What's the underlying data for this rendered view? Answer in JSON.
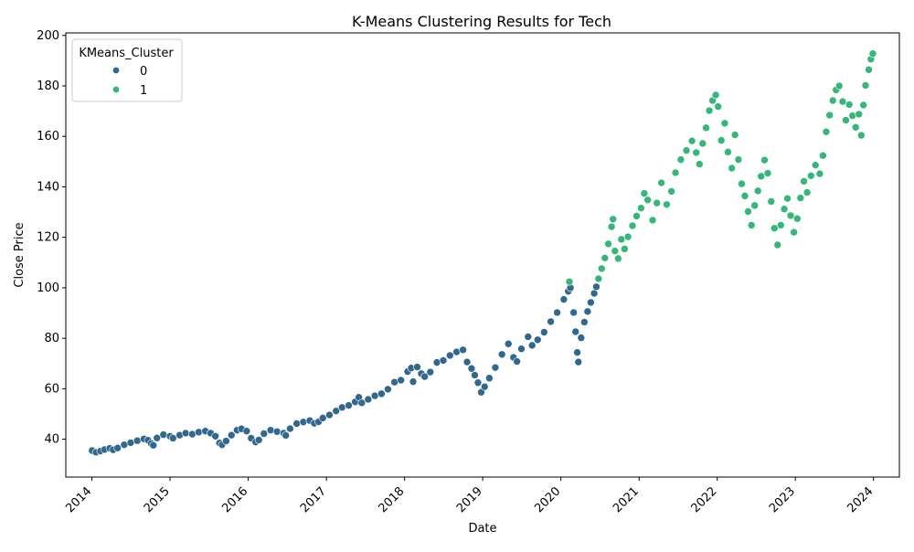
{
  "chart_data": {
    "type": "scatter",
    "title": "K-Means Clustering Results for Tech",
    "xlabel": "Date",
    "ylabel": "Close Price",
    "xlim": [
      "2013-09-01",
      "2024-05-01"
    ],
    "ylim": [
      25,
      201
    ],
    "x_ticks": [
      "2014",
      "2015",
      "2016",
      "2017",
      "2018",
      "2019",
      "2020",
      "2021",
      "2022",
      "2023",
      "2024"
    ],
    "y_ticks": [
      40,
      60,
      80,
      100,
      120,
      140,
      160,
      180,
      200
    ],
    "grid": false,
    "legend": {
      "title": "KMeans_Cluster",
      "placement": "upper-left",
      "entries": [
        {
          "label": "0",
          "color": "#31688e"
        },
        {
          "label": "1",
          "color": "#35b779"
        }
      ]
    },
    "series": [
      {
        "name": "0",
        "color": "#31688e",
        "points": [
          [
            "2014-01-02",
            35.5
          ],
          [
            "2014-01-20",
            34.8
          ],
          [
            "2014-02-10",
            35.3
          ],
          [
            "2014-03-01",
            35.9
          ],
          [
            "2014-03-25",
            36.4
          ],
          [
            "2014-04-10",
            35.8
          ],
          [
            "2014-05-01",
            36.5
          ],
          [
            "2014-06-01",
            37.8
          ],
          [
            "2014-07-01",
            38.6
          ],
          [
            "2014-08-01",
            39.4
          ],
          [
            "2014-09-01",
            40.1
          ],
          [
            "2014-09-20",
            39.6
          ],
          [
            "2014-10-05",
            38.3
          ],
          [
            "2014-10-15",
            37.6
          ],
          [
            "2014-11-01",
            40.5
          ],
          [
            "2014-12-01",
            41.8
          ],
          [
            "2015-01-01",
            41.2
          ],
          [
            "2015-01-15",
            40.4
          ],
          [
            "2015-02-15",
            41.6
          ],
          [
            "2015-03-15",
            42.4
          ],
          [
            "2015-04-15",
            42.0
          ],
          [
            "2015-05-15",
            42.8
          ],
          [
            "2015-06-15",
            43.2
          ],
          [
            "2015-07-10",
            42.4
          ],
          [
            "2015-08-01",
            41.2
          ],
          [
            "2015-08-20",
            38.5
          ],
          [
            "2015-09-01",
            37.8
          ],
          [
            "2015-09-20",
            39.3
          ],
          [
            "2015-10-15",
            41.6
          ],
          [
            "2015-11-10",
            43.6
          ],
          [
            "2015-12-01",
            44.1
          ],
          [
            "2015-12-25",
            43.2
          ],
          [
            "2016-01-15",
            40.4
          ],
          [
            "2016-02-05",
            38.9
          ],
          [
            "2016-02-20",
            39.7
          ],
          [
            "2016-03-15",
            42.2
          ],
          [
            "2016-04-15",
            43.6
          ],
          [
            "2016-05-15",
            43.0
          ],
          [
            "2016-06-15",
            42.4
          ],
          [
            "2016-06-25",
            41.5
          ],
          [
            "2016-07-15",
            44.2
          ],
          [
            "2016-08-15",
            46.2
          ],
          [
            "2016-09-15",
            46.8
          ],
          [
            "2016-10-15",
            47.4
          ],
          [
            "2016-11-05",
            46.3
          ],
          [
            "2016-11-25",
            46.9
          ],
          [
            "2016-12-15",
            48.4
          ],
          [
            "2017-01-15",
            49.6
          ],
          [
            "2017-02-15",
            51.2
          ],
          [
            "2017-03-15",
            52.6
          ],
          [
            "2017-04-15",
            53.4
          ],
          [
            "2017-05-15",
            54.8
          ],
          [
            "2017-06-01",
            56.6
          ],
          [
            "2017-06-15",
            54.4
          ],
          [
            "2017-07-15",
            55.8
          ],
          [
            "2017-08-15",
            57.2
          ],
          [
            "2017-09-15",
            58.0
          ],
          [
            "2017-10-15",
            59.8
          ],
          [
            "2017-11-15",
            62.6
          ],
          [
            "2017-12-15",
            63.4
          ],
          [
            "2018-01-15",
            66.8
          ],
          [
            "2018-02-01",
            68.2
          ],
          [
            "2018-02-10",
            62.8
          ],
          [
            "2018-03-01",
            68.6
          ],
          [
            "2018-03-20",
            66.0
          ],
          [
            "2018-04-05",
            64.8
          ],
          [
            "2018-05-01",
            66.6
          ],
          [
            "2018-06-01",
            70.4
          ],
          [
            "2018-07-01",
            71.2
          ],
          [
            "2018-08-01",
            73.2
          ],
          [
            "2018-09-01",
            74.6
          ],
          [
            "2018-10-01",
            75.4
          ],
          [
            "2018-10-20",
            70.6
          ],
          [
            "2018-11-10",
            68.0
          ],
          [
            "2018-11-25",
            65.4
          ],
          [
            "2018-12-10",
            62.4
          ],
          [
            "2018-12-25",
            58.6
          ],
          [
            "2019-01-10",
            60.8
          ],
          [
            "2019-02-01",
            64.2
          ],
          [
            "2019-03-01",
            68.4
          ],
          [
            "2019-04-01",
            73.6
          ],
          [
            "2019-05-01",
            77.8
          ],
          [
            "2019-05-25",
            72.4
          ],
          [
            "2019-06-10",
            70.8
          ],
          [
            "2019-07-01",
            75.8
          ],
          [
            "2019-08-01",
            80.6
          ],
          [
            "2019-08-20",
            77.2
          ],
          [
            "2019-09-15",
            79.4
          ],
          [
            "2019-10-15",
            82.4
          ],
          [
            "2019-11-15",
            86.6
          ],
          [
            "2019-12-15",
            90.2
          ],
          [
            "2020-01-15",
            95.4
          ],
          [
            "2020-02-05",
            98.6
          ],
          [
            "2020-02-15",
            100.0
          ],
          [
            "2020-03-01",
            90.2
          ],
          [
            "2020-03-10",
            82.6
          ],
          [
            "2020-03-18",
            74.4
          ],
          [
            "2020-03-23",
            70.6
          ],
          [
            "2020-04-05",
            80.2
          ],
          [
            "2020-04-20",
            86.4
          ],
          [
            "2020-05-05",
            90.6
          ],
          [
            "2020-05-20",
            94.2
          ],
          [
            "2020-06-05",
            97.8
          ],
          [
            "2020-06-15",
            100.4
          ]
        ]
      },
      {
        "name": "1",
        "color": "#35b779",
        "points": [
          [
            "2020-02-10",
            102.4
          ],
          [
            "2020-06-25",
            103.6
          ],
          [
            "2020-07-10",
            107.6
          ],
          [
            "2020-07-25",
            111.8
          ],
          [
            "2020-08-10",
            117.4
          ],
          [
            "2020-08-25",
            124.2
          ],
          [
            "2020-09-01",
            127.2
          ],
          [
            "2020-09-10",
            114.6
          ],
          [
            "2020-09-25",
            111.6
          ],
          [
            "2020-10-10",
            119.2
          ],
          [
            "2020-10-25",
            115.4
          ],
          [
            "2020-11-10",
            120.2
          ],
          [
            "2020-12-01",
            124.6
          ],
          [
            "2020-12-20",
            128.4
          ],
          [
            "2021-01-10",
            131.6
          ],
          [
            "2021-01-25",
            137.4
          ],
          [
            "2021-02-10",
            134.8
          ],
          [
            "2021-03-05",
            126.8
          ],
          [
            "2021-03-25",
            133.6
          ],
          [
            "2021-04-15",
            141.6
          ],
          [
            "2021-05-10",
            133.0
          ],
          [
            "2021-06-01",
            138.2
          ],
          [
            "2021-06-20",
            145.6
          ],
          [
            "2021-07-15",
            150.8
          ],
          [
            "2021-08-10",
            154.4
          ],
          [
            "2021-09-05",
            158.2
          ],
          [
            "2021-09-25",
            153.6
          ],
          [
            "2021-10-10",
            149.0
          ],
          [
            "2021-10-25",
            157.2
          ],
          [
            "2021-11-10",
            163.4
          ],
          [
            "2021-11-25",
            170.2
          ],
          [
            "2021-12-10",
            174.2
          ],
          [
            "2021-12-25",
            176.4
          ],
          [
            "2022-01-05",
            171.8
          ],
          [
            "2022-01-20",
            158.4
          ],
          [
            "2022-02-05",
            165.2
          ],
          [
            "2022-02-20",
            153.8
          ],
          [
            "2022-03-10",
            147.4
          ],
          [
            "2022-03-25",
            160.6
          ],
          [
            "2022-04-10",
            150.8
          ],
          [
            "2022-04-25",
            141.2
          ],
          [
            "2022-05-10",
            136.4
          ],
          [
            "2022-05-25",
            130.2
          ],
          [
            "2022-06-10",
            124.8
          ],
          [
            "2022-06-25",
            132.6
          ],
          [
            "2022-07-10",
            138.4
          ],
          [
            "2022-07-25",
            144.2
          ],
          [
            "2022-08-10",
            150.6
          ],
          [
            "2022-08-25",
            145.4
          ],
          [
            "2022-09-10",
            134.2
          ],
          [
            "2022-09-25",
            123.6
          ],
          [
            "2022-10-10",
            117.0
          ],
          [
            "2022-10-25",
            124.8
          ],
          [
            "2022-11-10",
            131.2
          ],
          [
            "2022-11-25",
            135.4
          ],
          [
            "2022-12-10",
            128.6
          ],
          [
            "2022-12-25",
            122.0
          ],
          [
            "2023-01-10",
            127.4
          ],
          [
            "2023-01-25",
            135.6
          ],
          [
            "2023-02-10",
            142.2
          ],
          [
            "2023-02-25",
            137.8
          ],
          [
            "2023-03-15",
            144.4
          ],
          [
            "2023-04-05",
            148.6
          ],
          [
            "2023-04-25",
            145.2
          ],
          [
            "2023-05-10",
            152.4
          ],
          [
            "2023-05-25",
            161.8
          ],
          [
            "2023-06-10",
            168.4
          ],
          [
            "2023-06-25",
            174.2
          ],
          [
            "2023-07-10",
            178.4
          ],
          [
            "2023-07-25",
            180.0
          ],
          [
            "2023-08-10",
            173.8
          ],
          [
            "2023-08-25",
            166.4
          ],
          [
            "2023-09-10",
            172.6
          ],
          [
            "2023-09-25",
            168.2
          ],
          [
            "2023-10-10",
            163.6
          ],
          [
            "2023-10-25",
            168.8
          ],
          [
            "2023-11-05",
            160.4
          ],
          [
            "2023-11-15",
            172.4
          ],
          [
            "2023-11-25",
            180.2
          ],
          [
            "2023-12-10",
            186.4
          ],
          [
            "2023-12-20",
            190.6
          ],
          [
            "2023-12-29",
            192.8
          ]
        ]
      }
    ]
  }
}
